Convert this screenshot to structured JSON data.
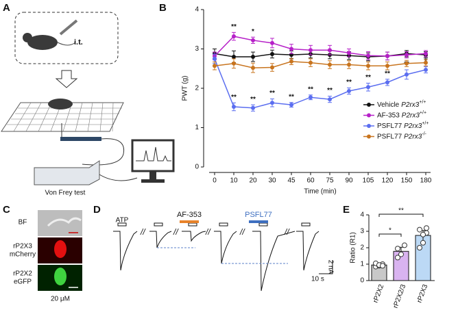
{
  "panel_letters": [
    "A",
    "B",
    "C",
    "D",
    "E"
  ],
  "panel_a": {
    "injection": "i.t.",
    "test": "Von Frey test"
  },
  "panel_c": {
    "rows": [
      [
        "BF"
      ],
      [
        "rP2X3",
        "mCherry"
      ],
      [
        "rP2X2",
        "eGFP"
      ]
    ],
    "scale": "20 μM"
  },
  "panel_d": {
    "labels": [
      "ATP",
      "AF-353",
      "PSFL77"
    ],
    "scale_y": "2 nA",
    "scale_x": "10 s",
    "break": "//"
  },
  "chart_data": [
    {
      "type": "line",
      "x_label": "Time (min)",
      "y_label": "PWT (g)",
      "categories": [
        "0",
        "10",
        "20",
        "30",
        "45",
        "60",
        "75",
        "90",
        "105",
        "120",
        "150",
        "180"
      ],
      "ylim": [
        0,
        4
      ],
      "yticks": [
        0,
        1,
        2,
        3,
        4
      ],
      "series": [
        {
          "name": "Vehicle",
          "gene": "P2rx3",
          "genotype": "+/+",
          "color": "#111111",
          "values": [
            2.88,
            2.8,
            2.8,
            2.87,
            2.85,
            2.87,
            2.85,
            2.83,
            2.8,
            2.82,
            2.88,
            2.85
          ],
          "errors": [
            0.12,
            0.15,
            0.12,
            0.1,
            0.1,
            0.1,
            0.1,
            0.1,
            0.1,
            0.1,
            0.08,
            0.08
          ],
          "significance": [
            null,
            null,
            null,
            null,
            null,
            null,
            null,
            null,
            null,
            null,
            null,
            null
          ]
        },
        {
          "name": "AF-353",
          "gene": "P2rx3",
          "genotype": "+/+",
          "color": "#b620c8",
          "values": [
            2.82,
            3.32,
            3.22,
            3.15,
            3.0,
            2.97,
            2.97,
            2.9,
            2.83,
            2.82,
            2.85,
            2.88
          ],
          "errors": [
            0.1,
            0.1,
            0.08,
            0.12,
            0.12,
            0.12,
            0.12,
            0.1,
            0.1,
            0.1,
            0.08,
            0.08
          ],
          "significance": [
            null,
            "**",
            "*",
            null,
            null,
            null,
            null,
            null,
            null,
            null,
            null,
            null
          ]
        },
        {
          "name": "PSFL77",
          "gene": "P2rx3",
          "genotype": "+/+",
          "color": "#5b6ef0",
          "values": [
            2.75,
            1.53,
            1.5,
            1.63,
            1.58,
            1.77,
            1.72,
            1.93,
            2.03,
            2.15,
            2.35,
            2.47
          ],
          "errors": [
            0.12,
            0.1,
            0.08,
            0.1,
            0.06,
            0.06,
            0.08,
            0.08,
            0.1,
            0.08,
            0.12,
            0.08
          ],
          "significance": [
            null,
            "**",
            "**",
            "**",
            "**",
            "**",
            "**",
            "**",
            "**",
            "**",
            "**",
            "*"
          ]
        },
        {
          "name": "PSFL77",
          "gene": "P2rx3",
          "genotype": "-/-",
          "color": "#c8741e",
          "values": [
            2.57,
            2.63,
            2.52,
            2.53,
            2.68,
            2.65,
            2.6,
            2.6,
            2.57,
            2.57,
            2.63,
            2.65
          ],
          "errors": [
            0.1,
            0.12,
            0.12,
            0.1,
            0.08,
            0.1,
            0.1,
            0.1,
            0.1,
            0.1,
            0.08,
            0.08
          ],
          "significance": [
            null,
            null,
            null,
            null,
            null,
            null,
            null,
            null,
            null,
            null,
            null,
            null
          ]
        }
      ]
    },
    {
      "type": "bar",
      "y_label": "Ratio (R1)",
      "categories": [
        "rP2X2",
        "rP2X2/3",
        "rP2X3"
      ],
      "values": [
        0.95,
        1.78,
        2.75
      ],
      "errors": [
        0.08,
        0.25,
        0.3
      ],
      "colors": [
        "#c8c8c8",
        "#d9b3f0",
        "#bcd9f5"
      ],
      "points": [
        [
          0.85,
          0.9,
          1.0,
          1.05,
          0.95,
          0.9
        ],
        [
          1.4,
          1.6,
          2.15,
          1.95
        ],
        [
          2.0,
          2.3,
          2.9,
          3.1,
          2.8,
          3.2
        ]
      ],
      "ylim": [
        0,
        4
      ],
      "yticks": [
        0,
        1,
        2,
        3,
        4
      ],
      "comparisons": [
        {
          "from": "rP2X2",
          "to": "rP2X2/3",
          "label": "*"
        },
        {
          "from": "rP2X2",
          "to": "rP2X3",
          "label": "**"
        }
      ]
    }
  ]
}
